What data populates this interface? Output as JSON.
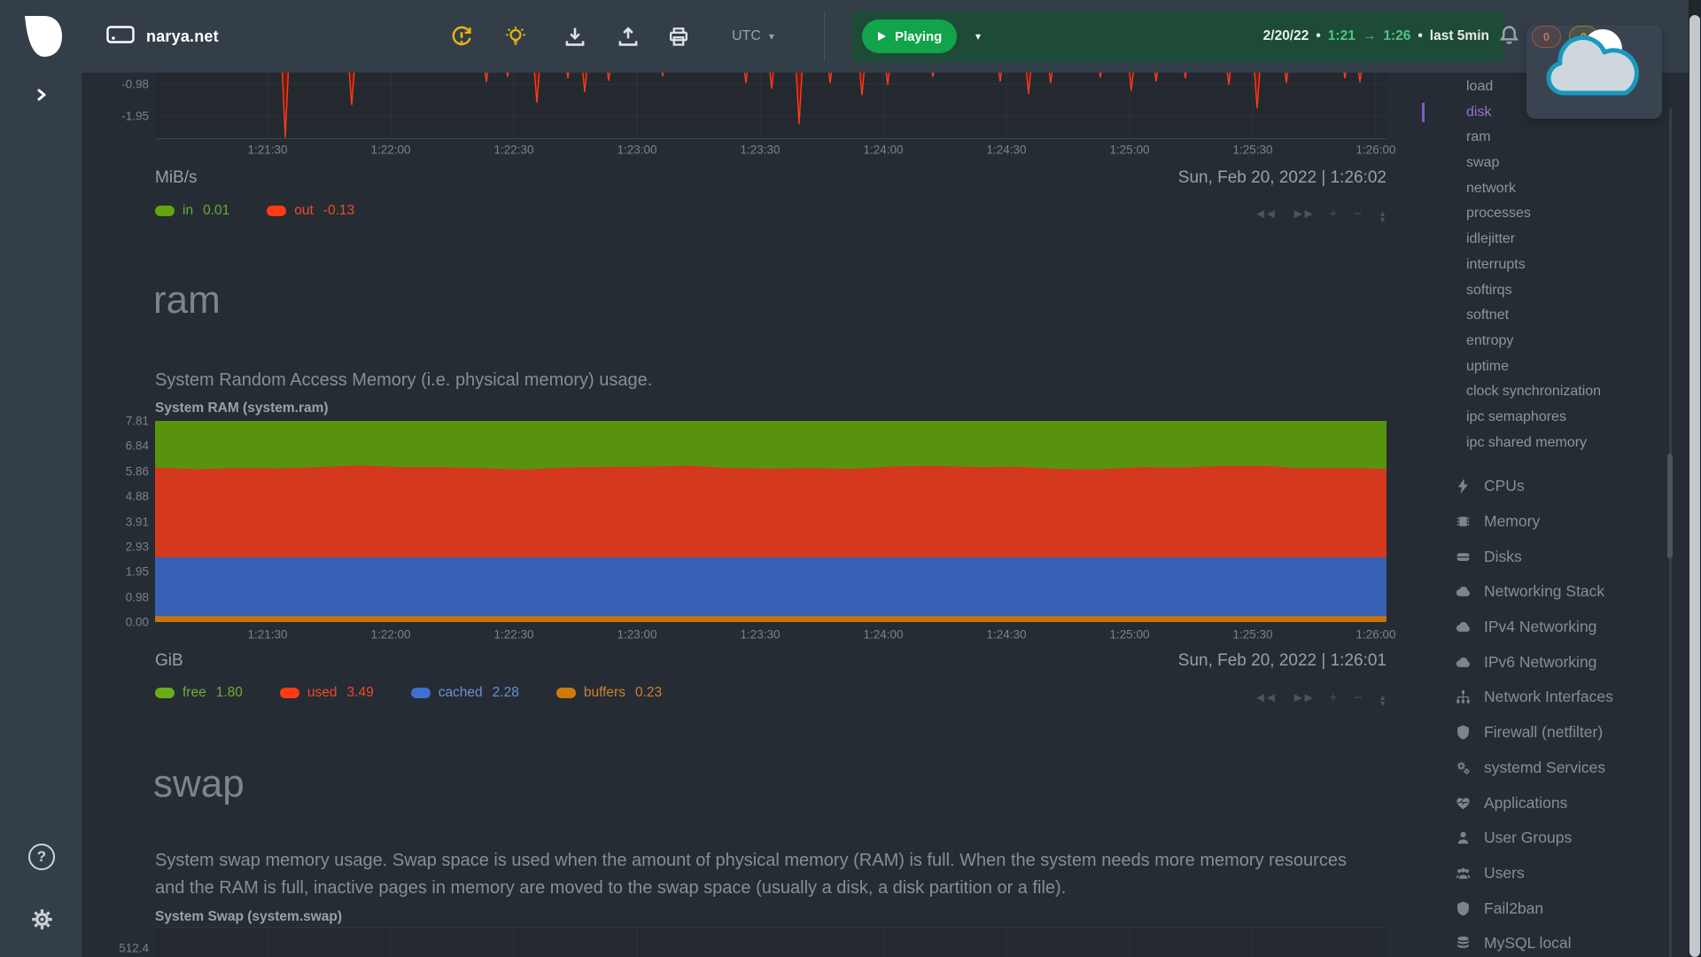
{
  "header": {
    "hostname": "narya.net",
    "timezone": "UTC",
    "play_label": "Playing",
    "range": {
      "date": "2/20/22",
      "dot1": "•",
      "start": "1:21",
      "arrow": "→",
      "end": "1:26",
      "dot2": "•",
      "span": "last 5min"
    },
    "alert_badges": [
      {
        "count": "0"
      },
      {
        "count": "0"
      }
    ]
  },
  "sections": {
    "net": {
      "units": "MiB/s",
      "timestamp": "Sun, Feb 20, 2022 | 1:26:02",
      "legend": [
        {
          "label": "in",
          "value": "0.01",
          "pill": "#61a60e",
          "text": "#64ad33"
        },
        {
          "label": "out",
          "value": "-0.13",
          "pill": "#ff3a14",
          "text": "#ef4a28"
        }
      ]
    },
    "ram": {
      "heading": "ram",
      "description": "System Random Access Memory (i.e. physical memory) usage.",
      "chart_title": "System RAM (system.ram)",
      "units": "GiB",
      "timestamp": "Sun, Feb 20, 2022 | 1:26:01",
      "legend": [
        {
          "label": "free",
          "value": "1.80",
          "pill": "#6bad16",
          "text": "#6fae37"
        },
        {
          "label": "used",
          "value": "3.49",
          "pill": "#ff3a14",
          "text": "#ef4a28"
        },
        {
          "label": "cached",
          "value": "2.28",
          "pill": "#3f6fd0",
          "text": "#6b8fd8"
        },
        {
          "label": "buffers",
          "value": "0.23",
          "pill": "#d0790b",
          "text": "#cf8030"
        }
      ]
    },
    "swap": {
      "heading": "swap",
      "description": "System swap memory usage. Swap space is used when the amount of physical memory (RAM) is full. When the system needs more memory resources and the RAM is full, inactive pages in memory are moved to the swap space (usually a disk, a disk partition or a file).",
      "chart_title": "System Swap (system.swap)",
      "first_ytick": "512.4"
    }
  },
  "chart_controls": [
    "rewind",
    "forward",
    "zoom-in",
    "zoom-out",
    "resize-vertical"
  ],
  "chart_data": [
    {
      "type": "area",
      "units": "MiB/s",
      "timestamp": "Sun, Feb 20, 2022 | 1:26:02",
      "yticks_visible": [
        "-0.98",
        "-1.95"
      ],
      "xticks": [
        "1:21:30",
        "1:22:00",
        "1:22:30",
        "1:23:00",
        "1:23:30",
        "1:24:00",
        "1:24:30",
        "1:25:00",
        "1:25:30",
        "1:26:00"
      ],
      "series": [
        {
          "name": "in",
          "current": 0.01,
          "color": "#61a60e"
        },
        {
          "name": "out",
          "current": -0.13,
          "color": "#d63a1f",
          "spikes": [
            [
              147,
              -2.62
            ],
            [
              222,
              -1.62
            ],
            [
              374,
              -0.92
            ],
            [
              398,
              -0.76
            ],
            [
              431,
              -1.55
            ],
            [
              466,
              -0.8
            ],
            [
              485,
              -1.22
            ],
            [
              512,
              -0.88
            ],
            [
              573,
              -0.74
            ],
            [
              667,
              -0.95
            ],
            [
              696,
              -1.12
            ],
            [
              727,
              -2.2
            ],
            [
              762,
              -0.95
            ],
            [
              798,
              -1.32
            ],
            [
              827,
              -1.0
            ],
            [
              878,
              -0.76
            ],
            [
              954,
              -0.9
            ],
            [
              986,
              -1.28
            ],
            [
              1011,
              -0.95
            ],
            [
              1067,
              -0.78
            ],
            [
              1102,
              -1.18
            ],
            [
              1130,
              -0.9
            ],
            [
              1163,
              -0.8
            ],
            [
              1212,
              -1.0
            ],
            [
              1244,
              -1.72
            ],
            [
              1277,
              -0.95
            ],
            [
              1343,
              -0.8
            ],
            [
              1360,
              -0.92
            ]
          ]
        }
      ],
      "grid": true,
      "legend_position": "bottom"
    },
    {
      "type": "stacked-area",
      "title": "System RAM (system.ram)",
      "units": "GiB",
      "timestamp": "Sun, Feb 20, 2022 | 1:26:01",
      "ylim": [
        0,
        7.81
      ],
      "yticks": [
        "7.81",
        "6.84",
        "5.86",
        "4.88",
        "3.91",
        "2.93",
        "1.95",
        "0.98",
        "0.00"
      ],
      "xticks": [
        "1:21:30",
        "1:22:00",
        "1:22:30",
        "1:23:00",
        "1:23:30",
        "1:24:00",
        "1:24:30",
        "1:25:00",
        "1:25:30",
        "1:26:00"
      ],
      "series": [
        {
          "name": "free",
          "value": 1.8,
          "color": "#57930d"
        },
        {
          "name": "used",
          "value": 3.49,
          "color": "#d4391d"
        },
        {
          "name": "cached",
          "value": 2.28,
          "color": "#3560b4"
        },
        {
          "name": "buffers",
          "value": 0.23,
          "color": "#c87307"
        }
      ],
      "stack_order_bottom_to_top": [
        "buffers",
        "cached",
        "used",
        "free"
      ],
      "legend_position": "bottom"
    },
    {
      "type": "area",
      "title": "System Swap (system.swap)",
      "yticks_visible": [
        "512.4"
      ]
    }
  ],
  "sidebar": {
    "submenu": [
      "load",
      "disk",
      "ram",
      "swap",
      "network",
      "processes",
      "idlejitter",
      "interrupts",
      "softirqs",
      "softnet",
      "entropy",
      "uptime",
      "clock synchronization",
      "ipc semaphores",
      "ipc shared memory"
    ],
    "active_submenu": "disk",
    "menu": [
      {
        "icon": "bolt-icon",
        "label": "CPUs"
      },
      {
        "icon": "memory-chip-icon",
        "label": "Memory"
      },
      {
        "icon": "disk-icon",
        "label": "Disks"
      },
      {
        "icon": "cloud-icon",
        "label": "Networking Stack"
      },
      {
        "icon": "cloud-icon",
        "label": "IPv4 Networking"
      },
      {
        "icon": "cloud-icon",
        "label": "IPv6 Networking"
      },
      {
        "icon": "network-tree-icon",
        "label": "Network Interfaces"
      },
      {
        "icon": "shield-icon",
        "label": "Firewall (netfilter)"
      },
      {
        "icon": "gears-icon",
        "label": "systemd Services"
      },
      {
        "icon": "heart-pulse-icon",
        "label": "Applications"
      },
      {
        "icon": "user-icon",
        "label": "User Groups"
      },
      {
        "icon": "users-icon",
        "label": "Users"
      },
      {
        "icon": "shield-icon",
        "label": "Fail2ban"
      },
      {
        "icon": "database-icon",
        "label": "MySQL local"
      }
    ]
  }
}
